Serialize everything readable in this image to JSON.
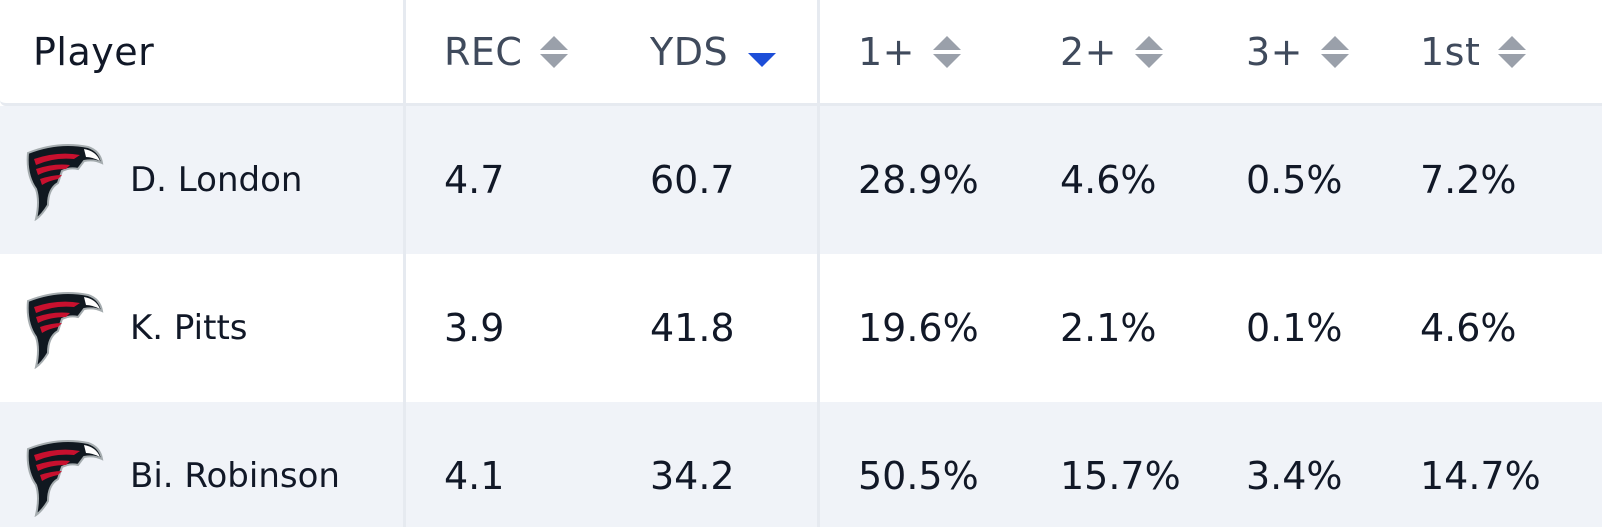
{
  "table": {
    "columns": [
      {
        "label": "Player",
        "sort": "none"
      },
      {
        "label": "REC",
        "sort": "unsorted"
      },
      {
        "label": "YDS",
        "sort": "descending"
      },
      {
        "label": "1+",
        "sort": "unsorted"
      },
      {
        "label": "2+",
        "sort": "unsorted"
      },
      {
        "label": "3+",
        "sort": "unsorted"
      },
      {
        "label": "1st",
        "sort": "unsorted"
      }
    ],
    "rows": [
      {
        "player": "D. London",
        "team_icon": "falcons-logo",
        "rec": "4.7",
        "yds": "60.7",
        "p1": "28.9%",
        "p2": "4.6%",
        "p3": "0.5%",
        "first": "7.2%"
      },
      {
        "player": "K. Pitts",
        "team_icon": "falcons-logo",
        "rec": "3.9",
        "yds": "41.8",
        "p1": "19.6%",
        "p2": "2.1%",
        "p3": "0.1%",
        "first": "4.6%"
      },
      {
        "player": "Bi. Robinson",
        "team_icon": "falcons-logo",
        "rec": "4.1",
        "yds": "34.2",
        "p1": "50.5%",
        "p2": "15.7%",
        "p3": "3.4%",
        "first": "14.7%"
      }
    ]
  },
  "colors": {
    "sort_active": "#1d4ed8",
    "sort_inactive": "#9aa0aa",
    "row_shaded": "#f0f3f8",
    "falcons_red": "#c8102e",
    "falcons_black": "#101820"
  }
}
